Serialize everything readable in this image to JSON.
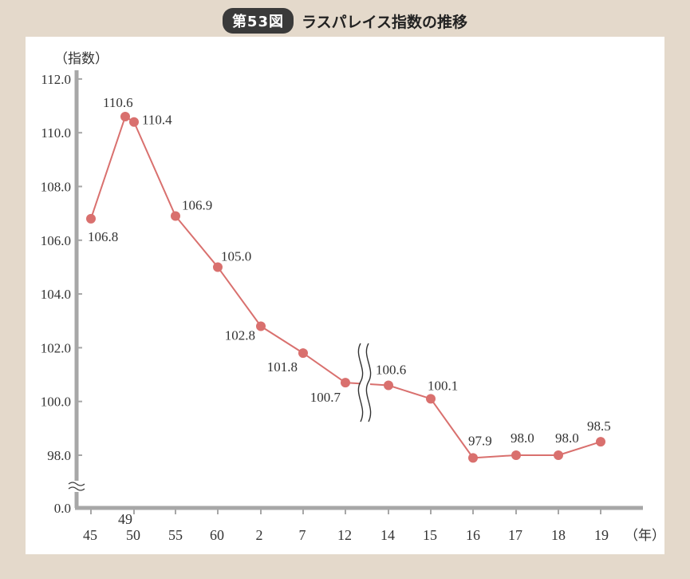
{
  "figure": {
    "number_label": "第53図",
    "title": "ラスパレイス指数の推移"
  },
  "colors": {
    "line": "#d9706e",
    "axis": "#a7a7a7",
    "background": "#e4d9cb"
  },
  "chart_data": {
    "type": "line",
    "ylabel": "（指数）",
    "xlabel": "（年）",
    "y_ticks": [
      "112.0",
      "110.0",
      "108.0",
      "106.0",
      "104.0",
      "102.0",
      "100.0",
      "98.0",
      "0.0"
    ],
    "ylim": [
      97,
      112
    ],
    "y_axis_break": true,
    "x_axis_break_between": [
      "12",
      "14"
    ],
    "categories": [
      "45",
      "49",
      "50",
      "55",
      "60",
      "2",
      "7",
      "12",
      "14",
      "15",
      "16",
      "17",
      "18",
      "19"
    ],
    "values": [
      106.8,
      110.6,
      110.4,
      106.9,
      105.0,
      102.8,
      101.8,
      100.7,
      100.6,
      100.1,
      97.9,
      98.0,
      98.0,
      98.5
    ],
    "data_labels": [
      "106.8",
      "110.6",
      "110.4",
      "106.9",
      "105.0",
      "102.8",
      "101.8",
      "100.7",
      "100.6",
      "100.1",
      "97.9",
      "98.0",
      "98.0",
      "98.5"
    ],
    "grid": false,
    "legend": "none"
  }
}
